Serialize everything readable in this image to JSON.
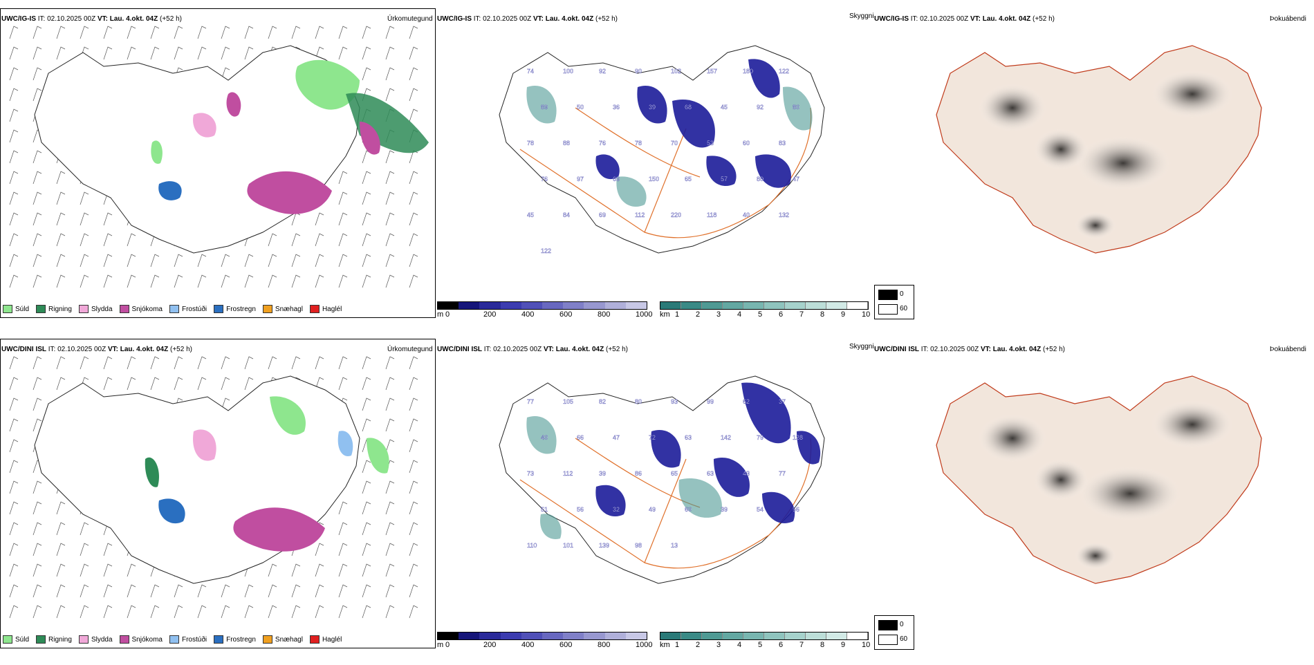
{
  "rows": [
    {
      "model": "UWC/IG-IS",
      "it_label": "IT: 02.10.2025 00Z",
      "vt_label": "VT: Lau. 4.okt. 04Z",
      "lead": "(+52 h)",
      "cloud_values": [
        "74",
        "100",
        "92",
        "90",
        "102",
        "157",
        "180",
        "122",
        "89",
        "50",
        "36",
        "39",
        "68",
        "45",
        "92",
        "80",
        "78",
        "88",
        "76",
        "78",
        "70",
        "53",
        "60",
        "83",
        "76",
        "97",
        "69",
        "150",
        "65",
        "57",
        "80",
        "47",
        "45",
        "84",
        "69",
        "112",
        "220",
        "118",
        "40",
        "132",
        "122"
      ]
    },
    {
      "model": "UWC/DINI ISL",
      "it_label": "IT: 02.10.2025 00Z",
      "vt_label": "VT: Lau. 4.okt. 04Z",
      "lead": "(+52 h)",
      "cloud_values": [
        "77",
        "105",
        "82",
        "80",
        "93",
        "99",
        "62",
        "37",
        "40",
        "66",
        "47",
        "72",
        "63",
        "142",
        "79",
        "128",
        "73",
        "112",
        "39",
        "86",
        "65",
        "63",
        "43",
        "77",
        "51",
        "56",
        "32",
        "49",
        "60",
        "39",
        "54",
        "56",
        "110",
        "101",
        "139",
        "98",
        "13"
      ]
    }
  ],
  "panel_titles": {
    "precip": "Úrkomutegund",
    "cloud": "Skyggni",
    "fog": "Þokuábendi"
  },
  "precip_legend": [
    {
      "label": "Súld",
      "color": "#8ee68e"
    },
    {
      "label": "Rigning",
      "color": "#2e8b57"
    },
    {
      "label": "Slydda",
      "color": "#f0a8d8"
    },
    {
      "label": "Snjókoma",
      "color": "#c04ea0"
    },
    {
      "label": "Frostúði",
      "color": "#90c0f0"
    },
    {
      "label": "Frostregn",
      "color": "#2a6fc0"
    },
    {
      "label": "Snæhagl",
      "color": "#f0a020"
    },
    {
      "label": "Haglél",
      "color": "#e02020"
    }
  ],
  "height_bar": {
    "unit": "m",
    "ticks": [
      "0",
      "200",
      "400",
      "600",
      "800",
      "1000"
    ],
    "colors": [
      "#000000",
      "#16167a",
      "#2a2a9a",
      "#3c3cb0",
      "#5050b8",
      "#6868c0",
      "#8080c8",
      "#9898d0",
      "#b0b0da",
      "#c8c8e6"
    ]
  },
  "vis_bar": {
    "unit": "km",
    "ticks": [
      "1",
      "2",
      "3",
      "4",
      "5",
      "6",
      "7",
      "8",
      "9",
      "10"
    ],
    "colors": [
      "#2a7a78",
      "#3a8a86",
      "#4f9a94",
      "#63a8a2",
      "#78b6b0",
      "#8fc4be",
      "#a6d2cc",
      "#bcded8",
      "#d2eae6",
      "#ffffff"
    ]
  },
  "fog_key": [
    "0",
    "60"
  ],
  "colors": {
    "coast": "#000000",
    "road": "#e0702a",
    "land_fog": "#f2e6dc"
  }
}
